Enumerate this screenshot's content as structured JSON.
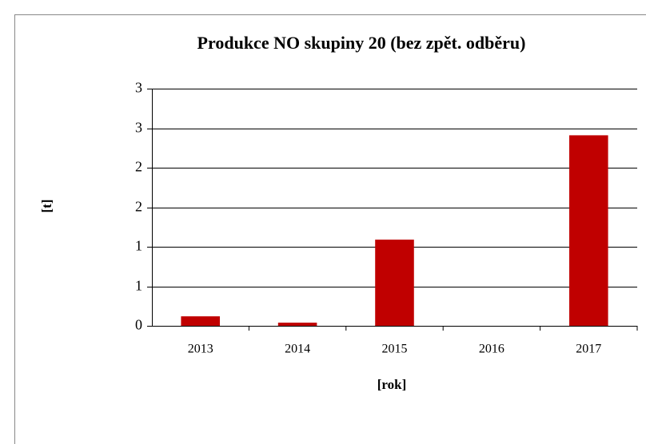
{
  "chart_data": {
    "type": "bar",
    "title": "Produkce NO skupiny  20 (bez zpět. odběru)",
    "x_label": "[rok]",
    "y_label": "[t]",
    "categories": [
      "2013",
      "2014",
      "2015",
      "2016",
      "2017"
    ],
    "values": [
      0.12,
      0.04,
      1.09,
      0,
      2.41
    ],
    "color": "#c00000",
    "ylim": [
      0,
      3
    ],
    "yticks": [
      0,
      {
        "value": 0.5,
        "label": "1"
      },
      1,
      {
        "value": 1.5,
        "label": "2"
      },
      2,
      {
        "value": 2.5,
        "label": "3"
      },
      3
    ],
    "grid": true
  }
}
